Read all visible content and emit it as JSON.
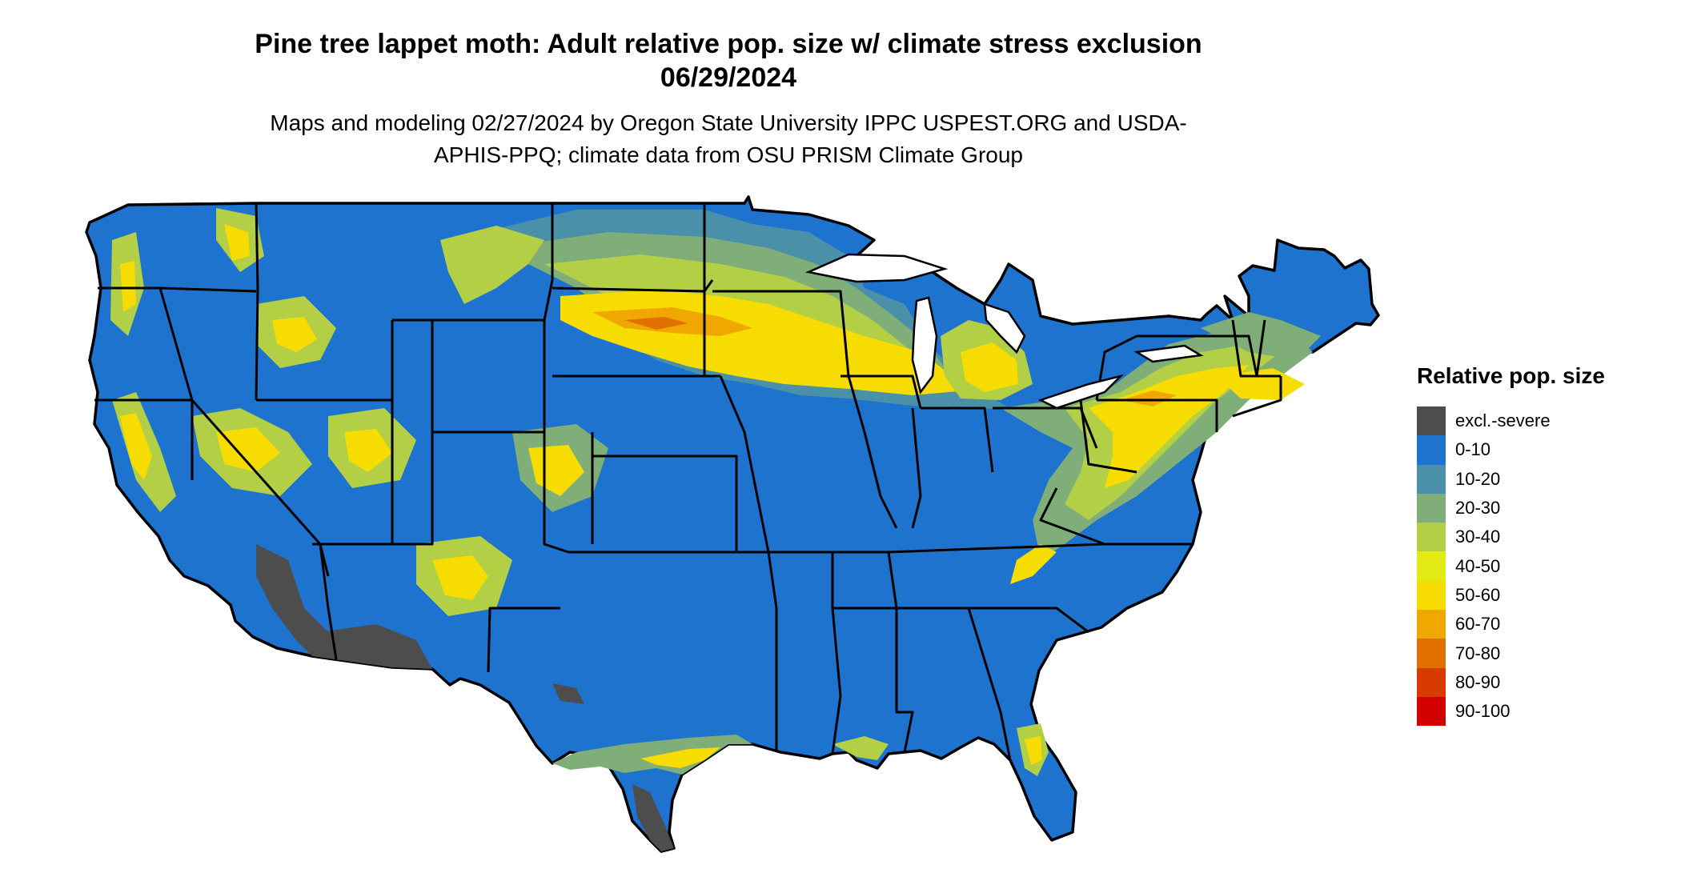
{
  "title": "Pine tree lappet moth: Adult relative pop. size w/ climate stress exclusion 06/29/2024",
  "subtitle": "Maps and modeling 02/27/2024 by Oregon State University IPPC USPEST.ORG and USDA-APHIS-PPQ; climate data from OSU PRISM Climate Group",
  "legend": {
    "title": "Relative pop. size",
    "items": [
      {
        "label": "excl.-severe",
        "color": "#4d4d4d"
      },
      {
        "label": "0-10",
        "color": "#1e73cf"
      },
      {
        "label": "10-20",
        "color": "#4a90a8"
      },
      {
        "label": "20-30",
        "color": "#7fae78"
      },
      {
        "label": "30-40",
        "color": "#b2cf46"
      },
      {
        "label": "40-50",
        "color": "#e2ea14"
      },
      {
        "label": "50-60",
        "color": "#f7dc00"
      },
      {
        "label": "60-70",
        "color": "#f0a800"
      },
      {
        "label": "70-80",
        "color": "#e07000"
      },
      {
        "label": "80-90",
        "color": "#d83a00"
      },
      {
        "label": "90-100",
        "color": "#d40000"
      }
    ]
  },
  "map": {
    "region": "Contiguous United States",
    "base_color": "#1e73cf",
    "border_color": "#000000"
  }
}
